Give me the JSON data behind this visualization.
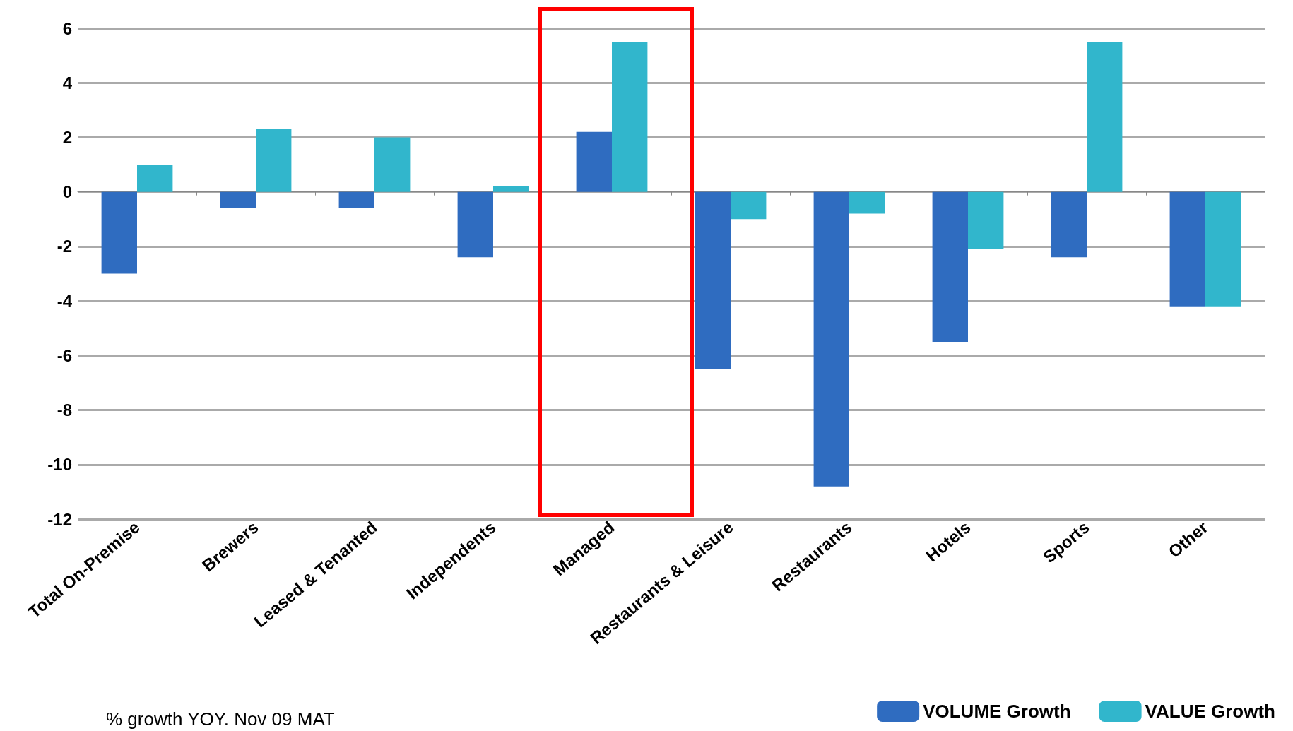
{
  "chart_data": {
    "type": "bar",
    "categories": [
      "Total On-Premise",
      "Brewers",
      "Leased & Tenanted",
      "Independents",
      "Managed",
      "Restaurants & Leisure",
      "Restaurants",
      "Hotels",
      "Sports",
      "Other"
    ],
    "series": [
      {
        "name": "VOLUME Growth",
        "color": "#2f6cc0",
        "values": [
          -3.0,
          -0.6,
          -0.6,
          -2.4,
          2.2,
          -6.5,
          -10.8,
          -5.5,
          -2.4,
          -4.2
        ]
      },
      {
        "name": "VALUE Growth",
        "color": "#31b6cc",
        "values": [
          1.0,
          2.3,
          2.0,
          0.2,
          5.5,
          -1.0,
          -0.8,
          -2.1,
          5.5,
          -4.2
        ]
      }
    ],
    "ylim": [
      -12,
      6
    ],
    "yticks": [
      -12,
      -10,
      -8,
      -6,
      -4,
      -2,
      0,
      2,
      4,
      6
    ],
    "grid": "y",
    "legend": "bottom right",
    "annotations": [
      "% growth YOY. Nov 09 MAT"
    ]
  }
}
